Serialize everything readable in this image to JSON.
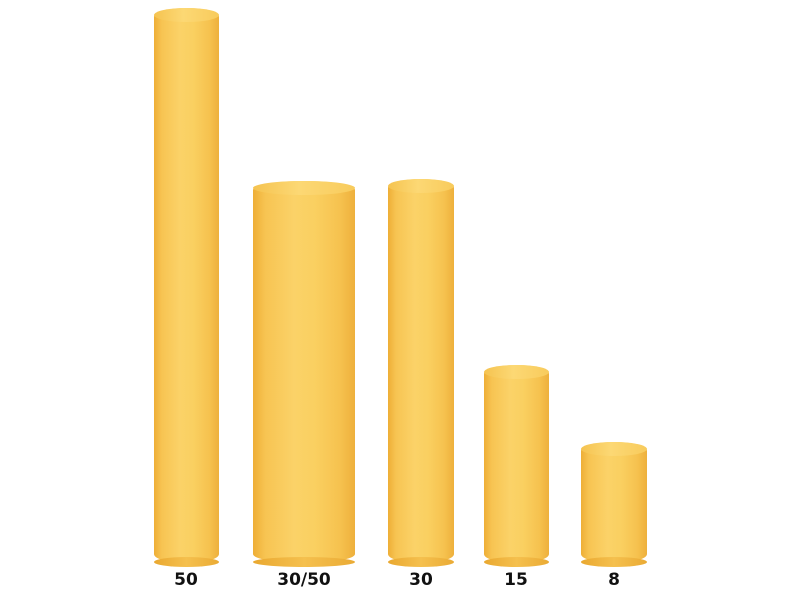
{
  "colors": {
    "roll": "#f8c85a",
    "background": "#ffffff",
    "label": "#111111"
  },
  "rolls": [
    {
      "label": "50"
    },
    {
      "label": "30/50"
    },
    {
      "label": "30"
    },
    {
      "label": "15"
    },
    {
      "label": "8"
    }
  ]
}
